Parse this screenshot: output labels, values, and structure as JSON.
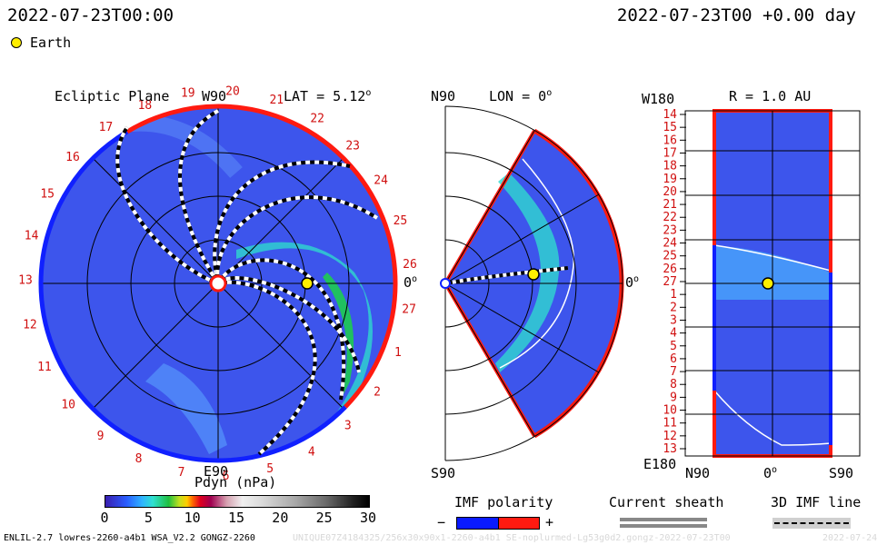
{
  "header": {
    "datetime_left": "2022-07-23T00:00",
    "datetime_right": "2022-07-23T00 +0.00 day",
    "earth_legend": "Earth"
  },
  "panel_ecliptic": {
    "title": "Ecliptic Plane",
    "top_label": "W90",
    "bottom_label": "E90",
    "right_label": "0",
    "right_label_sup": "o",
    "lat_label": "LAT = 5.12",
    "lat_sup": "o",
    "carrington_numbers": [
      "19",
      "20",
      "21",
      "22",
      "23",
      "24",
      "25",
      "26",
      "27",
      "1",
      "2",
      "3",
      "4",
      "5",
      "6",
      "7",
      "8",
      "9",
      "10",
      "11",
      "12",
      "13",
      "14",
      "15",
      "16",
      "17",
      "18"
    ]
  },
  "panel_meridional": {
    "top_left": "N90",
    "lon_label": "LON = 0",
    "lon_sup": "o",
    "right_label": "0",
    "right_sup": "o",
    "bottom_left": "S90"
  },
  "panel_radial": {
    "top_left": "W180",
    "title": "R = 1.0 AU",
    "bottom_left": "E180",
    "x_left": "N90",
    "x_center": "0",
    "x_center_sup": "o",
    "x_right": "S90",
    "y_ticks": [
      "14",
      "15",
      "16",
      "17",
      "18",
      "19",
      "20",
      "21",
      "22",
      "23",
      "24",
      "25",
      "26",
      "27",
      "1",
      "2",
      "3",
      "4",
      "5",
      "6",
      "7",
      "8",
      "9",
      "10",
      "11",
      "12",
      "13"
    ]
  },
  "colorbar": {
    "label": "Pdyn (nPa)",
    "ticks": [
      "0",
      "5",
      "10",
      "15",
      "20",
      "25",
      "30"
    ]
  },
  "legend": {
    "imf_title": "IMF polarity",
    "imf_minus": "−",
    "imf_plus": "+",
    "current_sheath_title": "Current sheath",
    "imf_line_title": "3D IMF line"
  },
  "footer": {
    "model_text": "ENLIL-2.7 lowres-2260-a4b1 WSA_V2.2 GONGZ-2260",
    "watermark": "UNIQUE07Z4184325/256x30x90x1-2260-a4b1 SE-noplurmed-Lg53g0d2.gongz-2022-07-23T00",
    "right_text": "2022-07-24"
  },
  "colors": {
    "background_field": "#3a4fe8",
    "polarity_negative": "#0a1aff",
    "polarity_positive": "#ff1a10",
    "label_red": "#d01010",
    "earth": "#ffee00"
  }
}
